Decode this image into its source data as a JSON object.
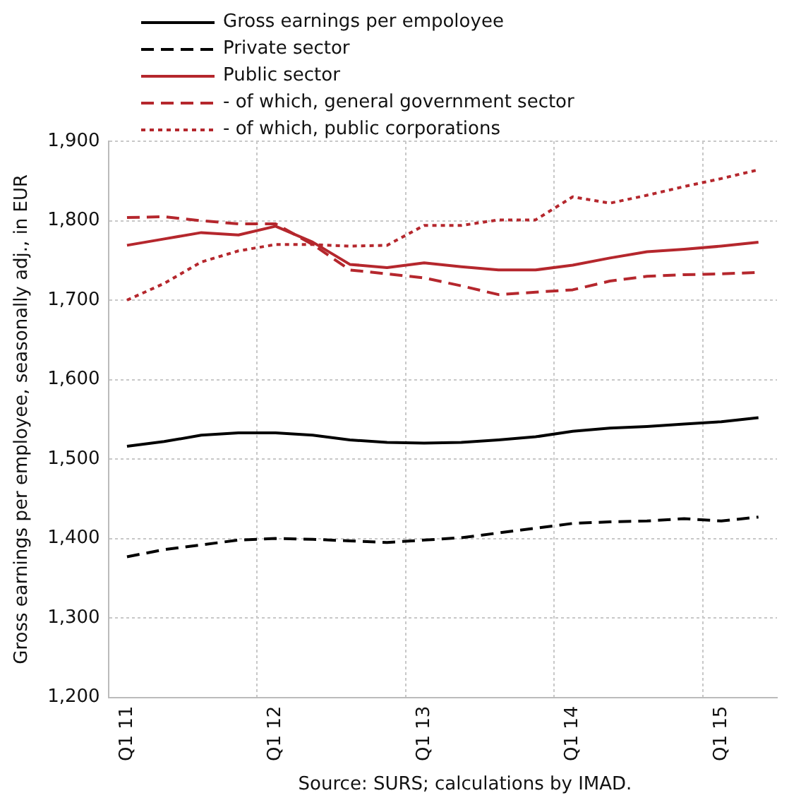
{
  "chart_data": {
    "type": "line",
    "ylabel": "Gross earnings per employee, seasonally adj., in EUR",
    "categories": [
      "Q1 11",
      null,
      null,
      null,
      "Q1 12",
      null,
      null,
      null,
      "Q1 13",
      null,
      null,
      null,
      "Q1 14",
      null,
      null,
      null,
      "Q1 15",
      null
    ],
    "series": [
      {
        "name": "Gross earnings per empoloyee",
        "color": "#000000",
        "line_style": "solid",
        "values": [
          1516,
          1522,
          1530,
          1533,
          1533,
          1530,
          1524,
          1521,
          1520,
          1521,
          1524,
          1528,
          1535,
          1539,
          1541,
          1544,
          1547,
          1552
        ]
      },
      {
        "name": "Private sector",
        "color": "#000000",
        "line_style": "dashed",
        "values": [
          1377,
          1386,
          1392,
          1398,
          1400,
          1399,
          1397,
          1395,
          1398,
          1401,
          1407,
          1413,
          1419,
          1421,
          1422,
          1425,
          1422,
          1427
        ]
      },
      {
        "name": "Public sector",
        "color": "#b5272d",
        "line_style": "solid",
        "values": [
          1769,
          1777,
          1785,
          1782,
          1793,
          1773,
          1745,
          1741,
          1747,
          1742,
          1738,
          1738,
          1744,
          1753,
          1761,
          1764,
          1768,
          1773
        ]
      },
      {
        "name": "- of which, general government sector",
        "color": "#b5272d",
        "line_style": "dashed",
        "values": [
          1804,
          1805,
          1800,
          1796,
          1796,
          1770,
          1738,
          1733,
          1728,
          1718,
          1707,
          1710,
          1713,
          1724,
          1730,
          1732,
          1733,
          1735
        ]
      },
      {
        "name": "- of which, public corporations",
        "color": "#b5272d",
        "line_style": "dotted",
        "values": [
          1700,
          1721,
          1748,
          1762,
          1770,
          1770,
          1768,
          1769,
          1794,
          1794,
          1801,
          1801,
          1830,
          1822,
          1832,
          1843,
          1853,
          1864
        ]
      }
    ],
    "ylim": [
      1200,
      1900
    ],
    "yticks": [
      {
        "value": 1200,
        "label": "1,200"
      },
      {
        "value": 1300,
        "label": "1,300"
      },
      {
        "value": 1400,
        "label": "1,400"
      },
      {
        "value": 1500,
        "label": "1,500"
      },
      {
        "value": 1600,
        "label": "1,600"
      },
      {
        "value": 1700,
        "label": "1,700"
      },
      {
        "value": 1800,
        "label": "1,800"
      },
      {
        "value": 1900,
        "label": "1,900"
      }
    ],
    "grid": true,
    "legend": "top",
    "marker": "none",
    "annotations": [
      "Source: SURS; calculations by IMAD."
    ]
  }
}
